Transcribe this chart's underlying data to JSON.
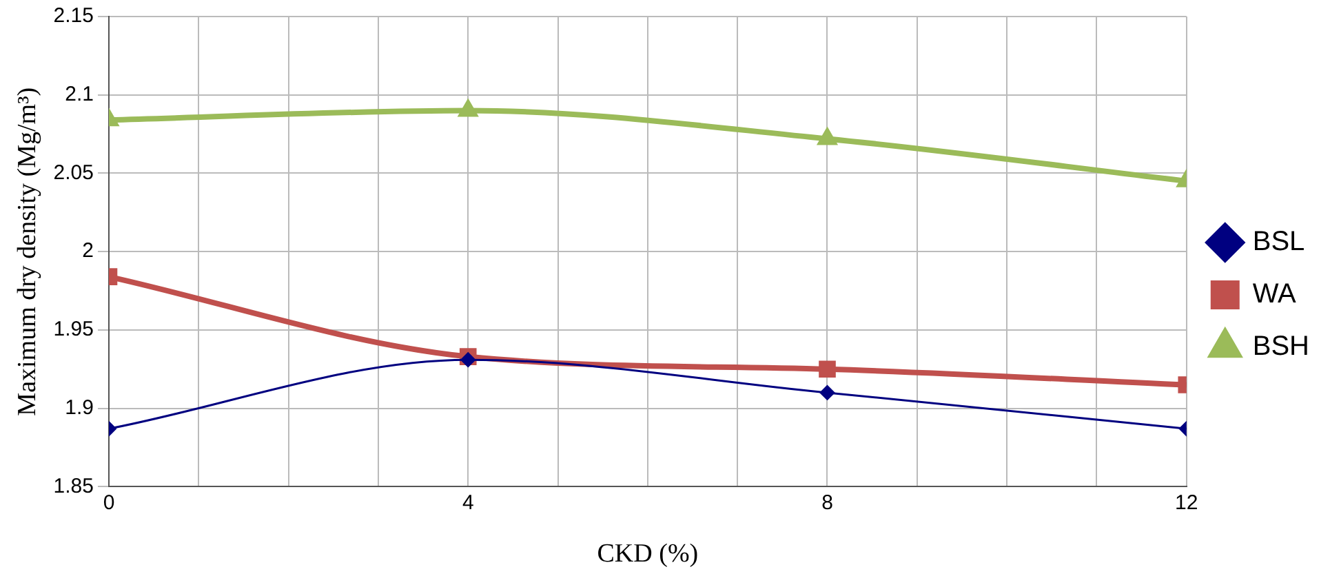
{
  "chart_data": {
    "type": "line",
    "xlabel": "CKD (%)",
    "ylabel": "Maximum dry density (Mg/m³)",
    "x": [
      0,
      4,
      8,
      12
    ],
    "series": [
      {
        "name": "BSL",
        "color": "#000080",
        "values": [
          1.887,
          1.931,
          1.91,
          1.887
        ],
        "marker": "diamond"
      },
      {
        "name": "WA",
        "color": "#c0504d",
        "values": [
          1.984,
          1.933,
          1.925,
          1.915
        ],
        "marker": "square"
      },
      {
        "name": "BSH",
        "color": "#9bbb59",
        "values": [
          2.084,
          2.09,
          2.072,
          2.045
        ],
        "marker": "triangle"
      }
    ],
    "xlim": [
      0,
      12
    ],
    "xticks": [
      0,
      {
        "value": 1,
        "label": null
      },
      {
        "value": 2,
        "label": null
      },
      {
        "value": 3,
        "label": null
      },
      4,
      {
        "value": 5,
        "label": null
      },
      {
        "value": 6,
        "label": null
      },
      {
        "value": 7,
        "label": null
      },
      8,
      {
        "value": 9,
        "label": null
      },
      {
        "value": 10,
        "label": null
      },
      {
        "value": 11,
        "label": null
      },
      12
    ],
    "ylim": [
      1.85,
      2.15
    ],
    "yticks": [
      1.85,
      1.9,
      1.95,
      2,
      2.05,
      2.1,
      2.15
    ],
    "grid": true,
    "legend": "right"
  }
}
